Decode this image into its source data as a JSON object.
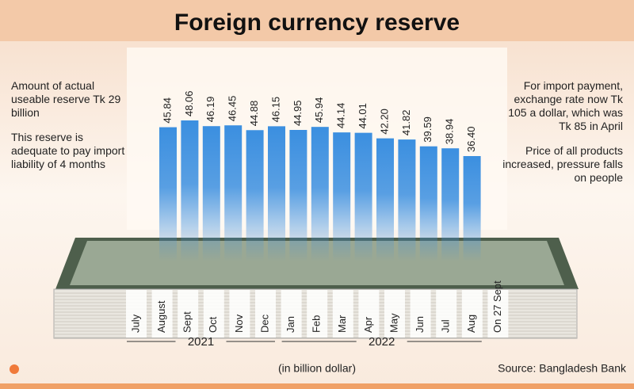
{
  "chart_data": {
    "type": "bar",
    "title": "Foreign currency reserve",
    "categories": [
      "July",
      "August",
      "Sept",
      "Oct",
      "Nov",
      "Dec",
      "Jan",
      "Feb",
      "Mar",
      "Apr",
      "May",
      "Jun",
      "Jul",
      "Aug",
      "On 27 Sept"
    ],
    "values": [
      45.84,
      48.06,
      46.19,
      46.45,
      44.88,
      46.15,
      44.95,
      45.94,
      44.14,
      44.01,
      42.2,
      41.82,
      39.59,
      38.94,
      36.4
    ],
    "value_labels": [
      "45.84",
      "48.06",
      "46.19",
      "46.45",
      "44.88",
      "46.15",
      "44.95",
      "45.94",
      "44.14",
      "44.01",
      "42.20",
      "41.82",
      "39.59",
      "38.94",
      "36.40"
    ],
    "color": "#3b8fe0",
    "year_groups": [
      {
        "label": "2021",
        "count": 6
      },
      {
        "label": "2022",
        "count": 8
      }
    ],
    "unit_label": "(in billion dollar)",
    "source": "Source: Bangladesh Bank",
    "notes_left": [
      "Amount of actual useable reserve Tk 29 billion",
      "This reserve is adequate to pay import liability of 4 months"
    ],
    "notes_right": [
      "For import payment, exchange rate now Tk 105 a dollar, which was Tk 85 in April",
      "Price of all products increased, pressure falls on people"
    ]
  }
}
